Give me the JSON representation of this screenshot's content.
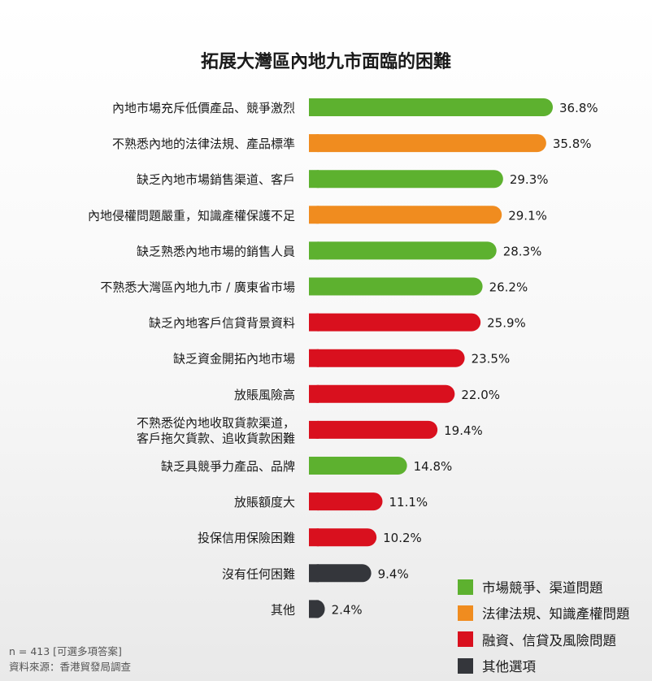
{
  "chart_data": {
    "type": "bar",
    "orientation": "horizontal",
    "title": "拓展大灣區內地九市面臨的困難",
    "categories": [
      "內地市場充斥低價產品、競爭激烈",
      "不熟悉內地的法律法規、產品標準",
      "缺乏內地市場銷售渠道、客戶",
      "內地侵權問題嚴重，知識產權保護不足",
      "缺乏熟悉內地市場的銷售人員",
      "不熟悉大灣區內地九市 / 廣東省市場",
      "缺乏內地客戶信貸背景資料",
      "缺乏資金開拓內地市場",
      "放賬風險高",
      "不熟悉從內地收取貨款渠道，\n客戶拖欠貨款、追收貨款困難",
      "缺乏具競爭力產品、品牌",
      "放賬額度大",
      "投保信用保險困難",
      "沒有任何困難",
      "其他"
    ],
    "values": [
      36.8,
      35.8,
      29.3,
      29.1,
      28.3,
      26.2,
      25.9,
      23.5,
      22.0,
      19.4,
      14.8,
      11.1,
      10.2,
      9.4,
      2.4
    ],
    "value_labels": [
      "36.8%",
      "35.8%",
      "29.3%",
      "29.1%",
      "28.3%",
      "26.2%",
      "25.9%",
      "23.5%",
      "22.0%",
      "19.4%",
      "14.8%",
      "11.1%",
      "10.2%",
      "9.4%",
      "2.4%"
    ],
    "groups": [
      "market",
      "legal",
      "market",
      "legal",
      "market",
      "market",
      "finance",
      "finance",
      "finance",
      "finance",
      "market",
      "finance",
      "finance",
      "other",
      "other"
    ],
    "legend": [
      {
        "key": "market",
        "label": "市場競爭、渠道問題",
        "color": "#5db12f"
      },
      {
        "key": "legal",
        "label": "法律法規、知識產權問題",
        "color": "#f08c1f"
      },
      {
        "key": "finance",
        "label": "融資、信貸及風險問題",
        "color": "#d9101e"
      },
      {
        "key": "other",
        "label": "其他選項",
        "color": "#34363b"
      }
    ],
    "legend_position": "bottom-right",
    "xlim": [
      0,
      40
    ],
    "grid": false
  },
  "footnote": {
    "sample": "n = 413 [可選多項答案]",
    "source": "資料來源：香港貿發局調查"
  }
}
